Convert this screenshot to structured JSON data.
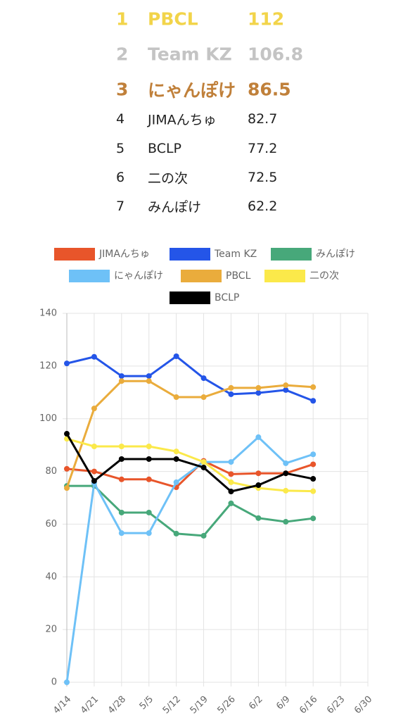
{
  "ranking": [
    {
      "rank": 1,
      "name": "PBCL",
      "score": 112
    },
    {
      "rank": 2,
      "name": "Team KZ",
      "score": 106.8
    },
    {
      "rank": 3,
      "name": "にゃんぽけ",
      "score": 86.5
    },
    {
      "rank": 4,
      "name": "JIMAんちゅ",
      "score": 82.7
    },
    {
      "rank": 5,
      "name": "BCLP",
      "score": 77.2
    },
    {
      "rank": 6,
      "name": "二の次",
      "score": 72.5
    },
    {
      "rank": 7,
      "name": "みんぽけ",
      "score": 62.2
    }
  ],
  "chart_data": {
    "type": "line",
    "categories": [
      "4/14",
      "4/21",
      "4/28",
      "5/5",
      "5/12",
      "5/19",
      "5/26",
      "6/2",
      "6/9",
      "6/16",
      "6/23",
      "6/30"
    ],
    "series": [
      {
        "name": "JIMAんちゅ",
        "color": "#e8552a",
        "values": [
          81,
          80,
          77,
          77,
          74,
          84,
          79,
          79.3,
          79.3,
          82.7,
          null,
          null
        ]
      },
      {
        "name": "Team KZ",
        "color": "#2455e8",
        "values": [
          121,
          123.5,
          116.2,
          116.2,
          123.7,
          115.4,
          109.3,
          109.8,
          110.9,
          106.8,
          null,
          null
        ]
      },
      {
        "name": "みんぽけ",
        "color": "#47a87a",
        "values": [
          74.5,
          74.5,
          64.4,
          64.4,
          56.4,
          55.6,
          67.9,
          62.3,
          60.9,
          62.2,
          null,
          null
        ]
      },
      {
        "name": "にゃんぽけ",
        "color": "#6ec1f7",
        "values": [
          0,
          75.6,
          56.6,
          56.6,
          75.9,
          83.6,
          83.6,
          93,
          83.1,
          86.5,
          null,
          null
        ]
      },
      {
        "name": "PBCL",
        "color": "#eaac3c",
        "values": [
          73.7,
          103.9,
          114.3,
          114.3,
          108.2,
          108.2,
          111.7,
          111.7,
          112.7,
          112,
          null,
          null
        ]
      },
      {
        "name": "二の次",
        "color": "#fbe94a",
        "values": [
          92.4,
          89.5,
          89.5,
          89.5,
          87.6,
          83.6,
          75.9,
          73.7,
          72.7,
          72.5,
          null,
          null
        ]
      },
      {
        "name": "BCLP",
        "color": "#000000",
        "values": [
          94.3,
          76.4,
          84.7,
          84.7,
          84.7,
          81.5,
          72.4,
          74.8,
          79.3,
          77.2,
          null,
          null
        ]
      }
    ],
    "ylim": [
      0,
      140
    ],
    "yticks": [
      0,
      20,
      40,
      60,
      80,
      100,
      120,
      140
    ],
    "grid": true
  }
}
